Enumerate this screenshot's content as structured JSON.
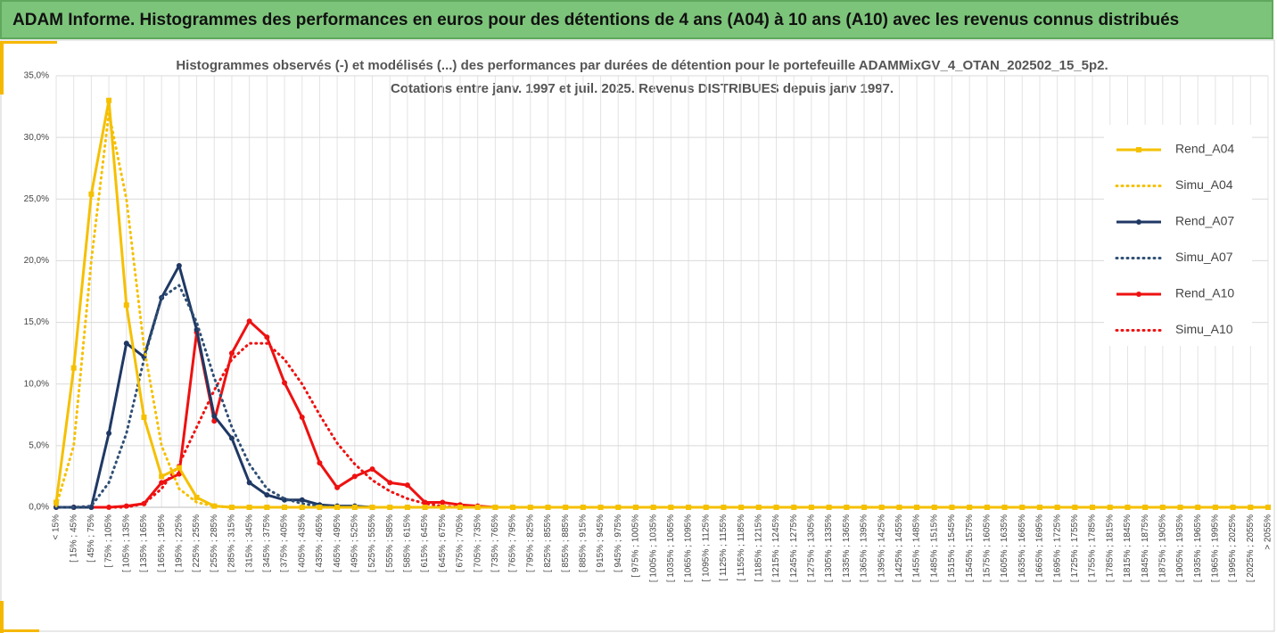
{
  "header": {
    "title": "ADAM Informe. Histogrammes des performances en euros pour des détentions de 4 ans (A04) à 10 ans (A10) avec les revenus connus distribués"
  },
  "chart_data": {
    "type": "line",
    "title": [
      "Histogrammes observés (-) et modélisés (...) des performances par durées de détention pour  le portefeuille ADAMMixGV_4_OTAN_202502_15_5p2.",
      "Cotations entre janv. 1997 et juil. 2025. Revenus DISTRIBUES depuis janv 1997."
    ],
    "categories": [
      "< 15%",
      "[ 15% ; 45%",
      "[ 45% ; 75%",
      "[ 75% ; 105%",
      "[ 105% ; 135%",
      "[ 135% ; 165%",
      "[ 165% ; 195%",
      "[ 195% ; 225%",
      "[ 225% ; 255%",
      "[ 255% ; 285%",
      "[ 285% ; 315%",
      "[ 315% ; 345%",
      "[ 345% ; 375%",
      "[ 375% ; 405%",
      "[ 405% ; 435%",
      "[ 435% ; 465%",
      "[ 465% ; 495%",
      "[ 495% ; 525%",
      "[ 525% ; 555%",
      "[ 555% ; 585%",
      "[ 585% ; 615%",
      "[ 615% ; 645%",
      "[ 645% ; 675%",
      "[ 675% ; 705%",
      "[ 705% ; 735%",
      "[ 735% ; 765%",
      "[ 765% ; 795%",
      "[ 795% ; 825%",
      "[ 825% ; 855%",
      "[ 855% ; 885%",
      "[ 885% ; 915%",
      "[ 915% ; 945%",
      "[ 945% ; 975%",
      "[ 975% ; 1005%",
      "[ 1005% ; 1035%",
      "[ 1035% ; 1065%",
      "[ 1065% ; 1095%",
      "[ 1095% ; 1125%",
      "[ 1125% ; 1155%",
      "[ 1155% ; 1185%",
      "[ 1185% ; 1215%",
      "[ 1215% ; 1245%",
      "[ 1245% ; 1275%",
      "[ 1275% ; 1305%",
      "[ 1305% ; 1335%",
      "[ 1335% ; 1365%",
      "[ 1365% ; 1395%",
      "[ 1395% ; 1425%",
      "[ 1425% ; 1455%",
      "[ 1455% ; 1485%",
      "[ 1485% ; 1515%",
      "[ 1515% ; 1545%",
      "[ 1545% ; 1575%",
      "[ 1575% ; 1605%",
      "[ 1605% ; 1635%",
      "[ 1635% ; 1665%",
      "[ 1665% ; 1695%",
      "[ 1695% ; 1725%",
      "[ 1725% ; 1755%",
      "[ 1755% ; 1785%",
      "[ 1785% ; 1815%",
      "[ 1815% ; 1845%",
      "[ 1845% ; 1875%",
      "[ 1875% ; 1905%",
      "[ 1905% ; 1935%",
      "[ 1935% ; 1965%",
      "[ 1965% ; 1995%",
      "[ 1995% ; 2025%",
      "[ 2025% ; 2055%",
      "> 2055%"
    ],
    "series": [
      {
        "name": "Rend_A04",
        "color": "#f5c000",
        "line_style": "solid",
        "marker": "square",
        "values": [
          0.4,
          11.3,
          25.4,
          33.0,
          16.4,
          7.3,
          2.5,
          3.2,
          0.8,
          0.1,
          0,
          0,
          0,
          0,
          0,
          0,
          0,
          0,
          0,
          0,
          0,
          0,
          0,
          0,
          0,
          0,
          0,
          0,
          0,
          0,
          0,
          0,
          0,
          0,
          0,
          0,
          0,
          0,
          0,
          0,
          0,
          0,
          0,
          0,
          0,
          0,
          0,
          0,
          0,
          0,
          0,
          0,
          0,
          0,
          0,
          0,
          0,
          0,
          0,
          0,
          0,
          0,
          0,
          0,
          0,
          0,
          0,
          0,
          0,
          0
        ]
      },
      {
        "name": "Simu_A04",
        "color": "#f5c000",
        "line_style": "dotted",
        "marker": "none",
        "values": [
          0.1,
          5,
          20,
          32,
          25,
          13,
          5,
          1.5,
          0.4,
          0.1,
          0,
          0,
          0,
          0,
          0,
          0,
          0,
          0,
          0,
          0,
          0,
          0,
          0,
          0,
          0,
          0,
          0,
          0,
          0,
          0,
          0,
          0,
          0,
          0,
          0,
          0,
          0,
          0,
          0,
          0,
          0,
          0,
          0,
          0,
          0,
          0,
          0,
          0,
          0,
          0,
          0,
          0,
          0,
          0,
          0,
          0,
          0,
          0,
          0,
          0,
          0,
          0,
          0,
          0,
          0,
          0,
          0,
          0,
          0,
          0
        ]
      },
      {
        "name": "Rend_A07",
        "color": "#1f3864",
        "line_style": "solid",
        "marker": "circle",
        "values": [
          0,
          0,
          0,
          6.0,
          13.3,
          12.2,
          17,
          19.6,
          14.4,
          7.4,
          5.6,
          2.0,
          1.0,
          0.6,
          0.6,
          0.2,
          0.1,
          0.1,
          0,
          0,
          0,
          0,
          0,
          0,
          0,
          0,
          0,
          0,
          0,
          0,
          0,
          0,
          0,
          0,
          0,
          0,
          0,
          0,
          0,
          0,
          0,
          0,
          0,
          0,
          0,
          0,
          0,
          0,
          0,
          0,
          0,
          0,
          0,
          0,
          0,
          0,
          0,
          0,
          0,
          0,
          0,
          0,
          0,
          0,
          0,
          0,
          0,
          0,
          0,
          0
        ]
      },
      {
        "name": "Simu_A07",
        "color": "#2f4f75",
        "line_style": "dotted",
        "marker": "none",
        "values": [
          0,
          0,
          0.1,
          2,
          6,
          12,
          17,
          18,
          15,
          10.5,
          6.5,
          3.5,
          1.5,
          0.7,
          0.3,
          0.1,
          0,
          0,
          0,
          0,
          0,
          0,
          0,
          0,
          0,
          0,
          0,
          0,
          0,
          0,
          0,
          0,
          0,
          0,
          0,
          0,
          0,
          0,
          0,
          0,
          0,
          0,
          0,
          0,
          0,
          0,
          0,
          0,
          0,
          0,
          0,
          0,
          0,
          0,
          0,
          0,
          0,
          0,
          0,
          0,
          0,
          0,
          0,
          0,
          0,
          0,
          0,
          0,
          0,
          0
        ]
      },
      {
        "name": "Rend_A10",
        "color": "#ee1111",
        "line_style": "solid",
        "marker": "circle",
        "values": [
          0,
          0,
          0,
          0,
          0.1,
          0.3,
          2.0,
          2.7,
          14.2,
          7.0,
          12.5,
          15.1,
          13.8,
          10.1,
          7.3,
          3.6,
          1.6,
          2.5,
          3.1,
          2.0,
          1.8,
          0.4,
          0.4,
          0.2,
          0.1,
          0,
          0,
          0,
          0,
          0,
          0,
          0,
          0,
          0,
          0,
          0,
          0,
          0,
          0,
          0,
          0,
          0,
          0,
          0,
          0,
          0,
          0,
          0,
          0,
          0,
          0,
          0,
          0,
          0,
          0,
          0,
          0,
          0,
          0,
          0,
          0,
          0,
          0,
          0,
          0,
          0,
          0,
          0,
          0,
          0
        ]
      },
      {
        "name": "Simu_A10",
        "color": "#ee1111",
        "line_style": "dotted",
        "marker": "none",
        "values": [
          0,
          0,
          0,
          0,
          0,
          0.3,
          1.5,
          3.5,
          6.5,
          9.5,
          12,
          13.3,
          13.3,
          12,
          10,
          7.5,
          5.2,
          3.5,
          2.2,
          1.3,
          0.7,
          0.3,
          0.1,
          0,
          0,
          0,
          0,
          0,
          0,
          0,
          0,
          0,
          0,
          0,
          0,
          0,
          0,
          0,
          0,
          0,
          0,
          0,
          0,
          0,
          0,
          0,
          0,
          0,
          0,
          0,
          0,
          0,
          0,
          0,
          0,
          0,
          0,
          0,
          0,
          0,
          0,
          0,
          0,
          0,
          0,
          0,
          0,
          0,
          0,
          0
        ]
      }
    ],
    "ylim": [
      0,
      35
    ],
    "yticks": [
      {
        "value": 0,
        "label": "0,0%"
      },
      {
        "value": 5,
        "label": "5,0%"
      },
      {
        "value": 10,
        "label": "10,0%"
      },
      {
        "value": 15,
        "label": "15,0%"
      },
      {
        "value": 20,
        "label": "20,0%"
      },
      {
        "value": 25,
        "label": "25,0%"
      },
      {
        "value": 30,
        "label": "30,0%"
      },
      {
        "value": 35,
        "label": "35,0%"
      }
    ],
    "grid": true,
    "legend": "right"
  }
}
